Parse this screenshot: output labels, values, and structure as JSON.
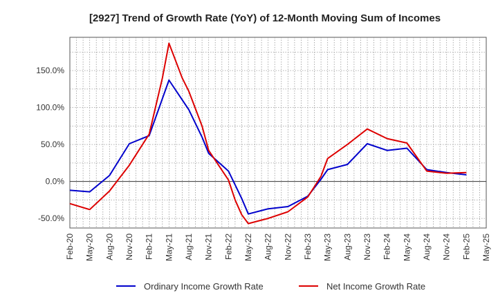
{
  "chart_data": {
    "type": "line",
    "title": "[2927]  Trend of Growth Rate (YoY) of 12-Month Moving Sum of Incomes",
    "xlabel": "",
    "ylabel": "",
    "ylim": [
      -63,
      195
    ],
    "y_ticks": [
      150,
      100,
      50,
      0,
      -50
    ],
    "y_tick_labels": [
      "150.0%",
      "100.0%",
      "50.0%",
      "0.0%",
      "-50.0%"
    ],
    "x_tick_labels": [
      "Feb-20",
      "May-20",
      "Aug-20",
      "Nov-20",
      "Feb-21",
      "May-21",
      "Aug-21",
      "Nov-21",
      "Feb-22",
      "May-22",
      "Aug-22",
      "Nov-22",
      "Feb-23",
      "May-23",
      "Aug-23",
      "Nov-23",
      "Feb-24",
      "May-24",
      "Aug-24",
      "Nov-24",
      "Feb-25",
      "May-25"
    ],
    "grid": true,
    "legend_position": "bottom",
    "series": [
      {
        "name": "Ordinary Income Growth Rate",
        "color": "#0000cc",
        "points": [
          [
            0,
            -12
          ],
          [
            3,
            -14
          ],
          [
            6,
            8
          ],
          [
            9,
            51
          ],
          [
            12,
            62
          ],
          [
            15,
            137
          ],
          [
            18,
            97
          ],
          [
            20,
            60
          ],
          [
            21,
            38
          ],
          [
            24,
            14
          ],
          [
            26,
            -23
          ],
          [
            27,
            -44
          ],
          [
            30,
            -37
          ],
          [
            33,
            -34
          ],
          [
            36,
            -20
          ],
          [
            38,
            3
          ],
          [
            39,
            16
          ],
          [
            42,
            23
          ],
          [
            45,
            51
          ],
          [
            48,
            42
          ],
          [
            51,
            45
          ],
          [
            54,
            16
          ],
          [
            57,
            12
          ],
          [
            60,
            9
          ]
        ]
      },
      {
        "name": "Net Income Growth Rate",
        "color": "#dd0000",
        "points": [
          [
            0,
            -30
          ],
          [
            3,
            -38
          ],
          [
            6,
            -13
          ],
          [
            9,
            22
          ],
          [
            12,
            64
          ],
          [
            14,
            140
          ],
          [
            15,
            187
          ],
          [
            17,
            140
          ],
          [
            18,
            122
          ],
          [
            20,
            75
          ],
          [
            21,
            42
          ],
          [
            24,
            2
          ],
          [
            25,
            -25
          ],
          [
            26,
            -45
          ],
          [
            27,
            -57
          ],
          [
            30,
            -50
          ],
          [
            33,
            -41
          ],
          [
            36,
            -21
          ],
          [
            38,
            7
          ],
          [
            39,
            31
          ],
          [
            42,
            50
          ],
          [
            45,
            71
          ],
          [
            48,
            58
          ],
          [
            51,
            52
          ],
          [
            54,
            14
          ],
          [
            57,
            11
          ],
          [
            60,
            12
          ]
        ]
      }
    ]
  }
}
